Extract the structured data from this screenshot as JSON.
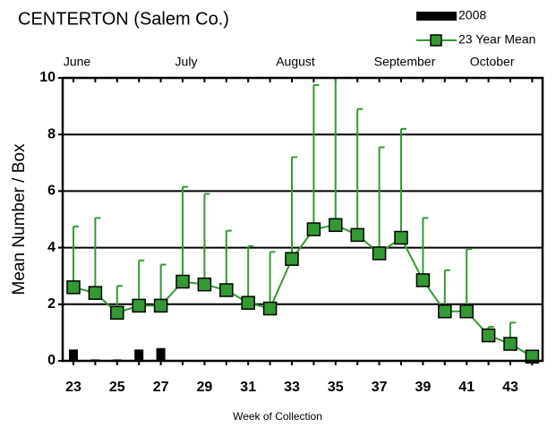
{
  "chart_data": {
    "type": "bar_line_errorbar",
    "title": "CENTERTON (Salem Co.)",
    "xlabel": "Week of Collection",
    "ylabel": "Mean Number / Box",
    "month_labels": [
      "June",
      "July",
      "August",
      "September",
      "October"
    ],
    "categories": [
      "23",
      null,
      "25",
      null,
      "27",
      null,
      "29",
      null,
      "31",
      null,
      "33",
      null,
      "35",
      null,
      "37",
      null,
      "39",
      null,
      "41",
      null,
      "43",
      null
    ],
    "series": [
      {
        "name": "2008",
        "type": "bar",
        "color": "#000000",
        "values": [
          0.4,
          0.05,
          0.05,
          0.4,
          0.45,
          null,
          null,
          null,
          null,
          null,
          null,
          null,
          null,
          null,
          null,
          null,
          null,
          null,
          null,
          null,
          null,
          null
        ]
      },
      {
        "name": "23 Year Mean",
        "type": "line",
        "color": "#339933",
        "values": [
          2.6,
          2.4,
          1.7,
          1.95,
          1.95,
          2.8,
          2.7,
          2.5,
          2.05,
          1.85,
          3.6,
          4.65,
          4.8,
          4.45,
          3.8,
          4.35,
          2.85,
          1.75,
          1.75,
          0.9,
          0.6,
          0.15
        ],
        "errors": [
          2.15,
          2.65,
          0.95,
          1.6,
          1.45,
          3.35,
          3.2,
          2.1,
          2.0,
          2.0,
          3.6,
          5.1,
          5.2,
          4.45,
          3.75,
          3.85,
          2.2,
          1.45,
          2.2,
          0.3,
          0.75,
          null
        ]
      }
    ],
    "ylim": [
      0,
      10
    ],
    "yticks": [
      0,
      2,
      4,
      6,
      8,
      10
    ],
    "grid": true
  }
}
